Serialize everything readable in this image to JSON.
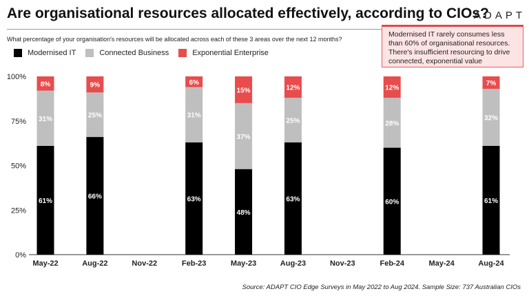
{
  "title": "Are organisational resources allocated effectively, according to CIOs?",
  "logo": "ADAPT",
  "question": "What percentage of your organisation's resources will be allocated across each of these 3 areas over the next 12 months?",
  "note": "Modernised IT rarely consumes less than 60% of organisational resources. There's insufficient resourcing to drive connected, exponential value",
  "source": "Source: ADAPT CIO Edge Surveys in May 2022 to Aug 2024. Sample Size: 737 Australian CIOs",
  "chart_data": {
    "type": "bar",
    "stacked": true,
    "categories": [
      "May-22",
      "Aug-22",
      "Nov-22",
      "Feb-23",
      "May-23",
      "Aug-23",
      "Nov-23",
      "Feb-24",
      "May-24",
      "Aug-24"
    ],
    "series": [
      {
        "name": "Modernised IT",
        "color": "#000000",
        "values": [
          61,
          66,
          null,
          63,
          48,
          63,
          null,
          60,
          null,
          61
        ]
      },
      {
        "name": "Connected Business",
        "color": "#bfbfbf",
        "values": [
          31,
          25,
          null,
          31,
          37,
          25,
          null,
          28,
          null,
          32
        ]
      },
      {
        "name": "Exponential Enterprise",
        "color": "#e84c4c",
        "values": [
          8,
          9,
          null,
          6,
          15,
          12,
          null,
          12,
          null,
          7
        ]
      }
    ],
    "yticks": [
      "0%",
      "25%",
      "50%",
      "75%",
      "100%"
    ],
    "ylim": [
      0,
      100
    ],
    "legend": "top-left",
    "grid": false
  }
}
